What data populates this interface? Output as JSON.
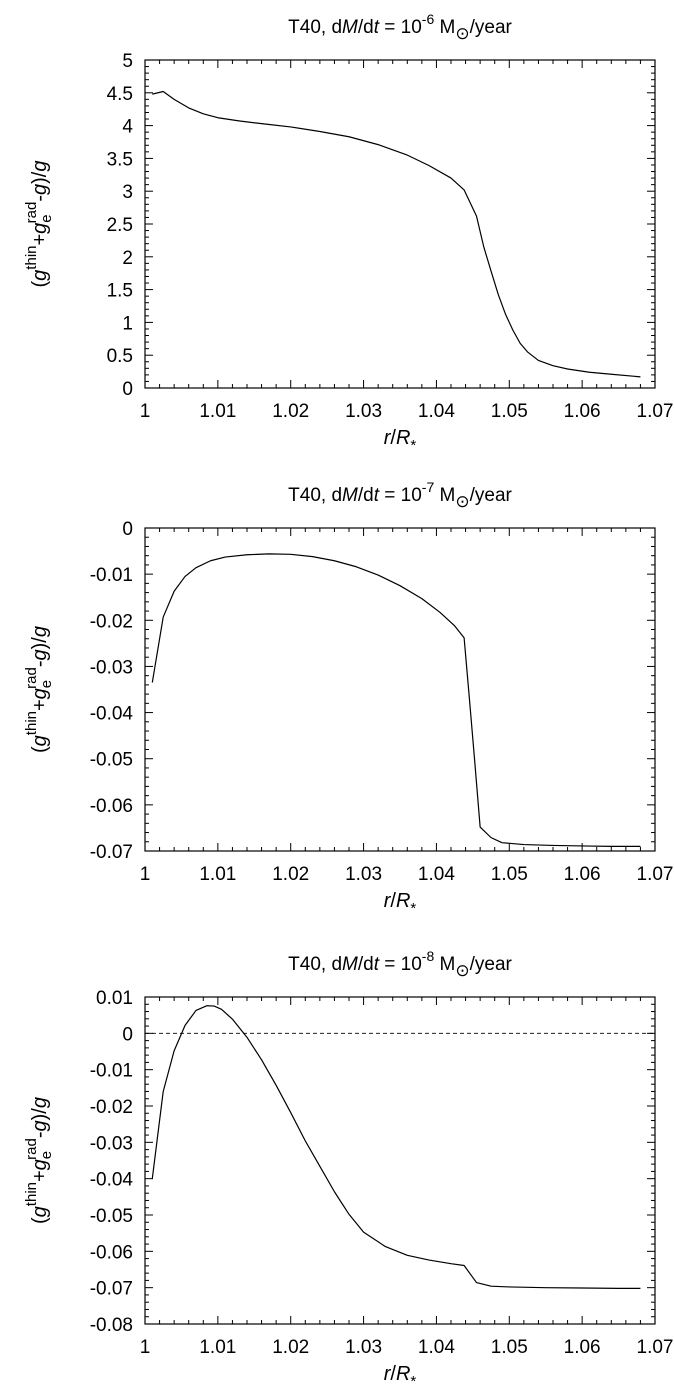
{
  "chart_data": [
    {
      "type": "line",
      "title": "T40, dM/dt = 10^-6 M_sun/year",
      "title_parts": {
        "prefix": "T40, d",
        "M": "M",
        "slash": "/d",
        "t": "t",
        "eq": " = 10",
        "exp": "-6",
        "unit_m": " M",
        "sun": "⊙",
        "unit_rest": "/year"
      },
      "xlabel": "r/R*",
      "ylabel": "(g^thin+g_e^rad-g)/g",
      "xlim": [
        1,
        1.07
      ],
      "ylim": [
        0,
        5
      ],
      "xticks": [
        "1",
        "1.01",
        "1.02",
        "1.03",
        "1.04",
        "1.05",
        "1.06",
        "1.07"
      ],
      "yticks": [
        "0",
        "0.5",
        "1",
        "1.5",
        "2",
        "2.5",
        "3",
        "3.5",
        "4",
        "4.5",
        "5"
      ],
      "grid": false,
      "zero_line": false,
      "series": [
        {
          "x": [
            1.001,
            1.0025,
            1.004,
            1.006,
            1.008,
            1.01,
            1.013,
            1.016,
            1.02,
            1.024,
            1.028,
            1.032,
            1.036,
            1.039,
            1.042,
            1.0438,
            1.0455,
            1.0465,
            1.0475,
            1.0485,
            1.0495,
            1.0505,
            1.0515,
            1.0525,
            1.054,
            1.056,
            1.058,
            1.061,
            1.064,
            1.068
          ],
          "y": [
            4.48,
            4.52,
            4.4,
            4.27,
            4.18,
            4.12,
            4.07,
            4.03,
            3.98,
            3.91,
            3.83,
            3.71,
            3.55,
            3.39,
            3.2,
            3.02,
            2.62,
            2.15,
            1.78,
            1.42,
            1.12,
            0.88,
            0.68,
            0.55,
            0.42,
            0.34,
            0.29,
            0.24,
            0.21,
            0.17
          ]
        }
      ]
    },
    {
      "type": "line",
      "title": "T40, dM/dt = 10^-7 M_sun/year",
      "title_parts": {
        "prefix": "T40, d",
        "M": "M",
        "slash": "/d",
        "t": "t",
        "eq": " = 10",
        "exp": "-7",
        "unit_m": " M",
        "sun": "⊙",
        "unit_rest": "/year"
      },
      "xlabel": "r/R*",
      "ylabel": "(g^thin+g_e^rad-g)/g",
      "xlim": [
        1,
        1.07
      ],
      "ylim": [
        -0.07,
        0
      ],
      "xticks": [
        "1",
        "1.01",
        "1.02",
        "1.03",
        "1.04",
        "1.05",
        "1.06",
        "1.07"
      ],
      "yticks": [
        "-0.07",
        "-0.06",
        "-0.05",
        "-0.04",
        "-0.03",
        "-0.02",
        "-0.01",
        "0"
      ],
      "grid": false,
      "zero_line": false,
      "series": [
        {
          "x": [
            1.001,
            1.0025,
            1.004,
            1.0055,
            1.007,
            1.009,
            1.011,
            1.014,
            1.017,
            1.02,
            1.023,
            1.026,
            1.029,
            1.032,
            1.035,
            1.038,
            1.0405,
            1.0425,
            1.0438,
            1.0445,
            1.0452,
            1.046,
            1.0475,
            1.049,
            1.052,
            1.056,
            1.06,
            1.064,
            1.068
          ],
          "y": [
            -0.0335,
            -0.0193,
            -0.0137,
            -0.0105,
            -0.0086,
            -0.0071,
            -0.0063,
            -0.0058,
            -0.0056,
            -0.0057,
            -0.0062,
            -0.0071,
            -0.0084,
            -0.0102,
            -0.0125,
            -0.0153,
            -0.0183,
            -0.0212,
            -0.0238,
            -0.0365,
            -0.0495,
            -0.0648,
            -0.0671,
            -0.0682,
            -0.0686,
            -0.0688,
            -0.0689,
            -0.069,
            -0.069
          ]
        }
      ]
    },
    {
      "type": "line",
      "title": "T40, dM/dt = 10^-8 M_sun/year",
      "title_parts": {
        "prefix": "T40, d",
        "M": "M",
        "slash": "/d",
        "t": "t",
        "eq": " = 10",
        "exp": "-8",
        "unit_m": " M",
        "sun": "⊙",
        "unit_rest": "/year"
      },
      "xlabel": "r/R*",
      "ylabel": "(g^thin+g_e^rad-g)/g",
      "xlim": [
        1,
        1.07
      ],
      "ylim": [
        -0.08,
        0.01
      ],
      "xticks": [
        "1",
        "1.01",
        "1.02",
        "1.03",
        "1.04",
        "1.05",
        "1.06",
        "1.07"
      ],
      "yticks": [
        "-0.08",
        "-0.07",
        "-0.06",
        "-0.05",
        "-0.04",
        "-0.03",
        "-0.02",
        "-0.01",
        "0",
        "0.01"
      ],
      "grid": false,
      "zero_line": true,
      "series": [
        {
          "x": [
            1.001,
            1.0025,
            1.004,
            1.0055,
            1.007,
            1.0085,
            1.0095,
            1.0105,
            1.012,
            1.014,
            1.016,
            1.018,
            1.02,
            1.022,
            1.024,
            1.026,
            1.028,
            1.03,
            1.033,
            1.036,
            1.039,
            1.042,
            1.0438,
            1.0455,
            1.0475,
            1.05,
            1.055,
            1.06,
            1.065,
            1.068
          ],
          "y": [
            -0.04,
            -0.016,
            -0.0048,
            0.0022,
            0.0063,
            0.0076,
            0.0075,
            0.0066,
            0.0039,
            -0.0011,
            -0.0073,
            -0.0143,
            -0.0218,
            -0.0296,
            -0.0366,
            -0.0436,
            -0.0498,
            -0.0547,
            -0.0587,
            -0.0611,
            -0.0624,
            -0.0634,
            -0.0639,
            -0.0686,
            -0.0696,
            -0.0698,
            -0.07,
            -0.0701,
            -0.0702,
            -0.0702
          ]
        }
      ]
    }
  ]
}
